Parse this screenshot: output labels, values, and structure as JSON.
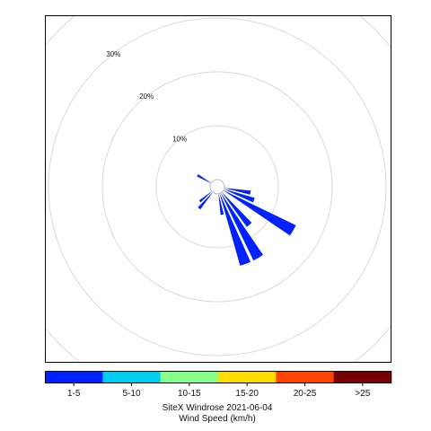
{
  "chart_data": {
    "type": "windrose",
    "title": "SiteX Windrose 2021-06-04",
    "legend_title": "Wind Speed (km/h)",
    "radial_unit": "%",
    "radial_max": 30,
    "radial_ticks": [
      {
        "value": 10,
        "label": "10%"
      },
      {
        "value": 20,
        "label": "20%"
      },
      {
        "value": 30,
        "label": "30%"
      }
    ],
    "ring_values": [
      10,
      20,
      30,
      40
    ],
    "speed_bins": [
      {
        "label": "1-5",
        "color": "#0022ff"
      },
      {
        "label": "5-10",
        "color": "#00ccee"
      },
      {
        "label": "10-15",
        "color": "#88ff88"
      },
      {
        "label": "15-20",
        "color": "#ffdd00"
      },
      {
        "label": "20-25",
        "color": "#ff4400"
      },
      {
        "label": ">25",
        "color": "#770000"
      }
    ],
    "sectors": [
      {
        "direction_deg": 300,
        "frequency": 3
      },
      {
        "direction_deg": 100,
        "frequency": 5
      },
      {
        "direction_deg": 110,
        "frequency": 6
      },
      {
        "direction_deg": 120,
        "frequency": 15
      },
      {
        "direction_deg": 140,
        "frequency": 8
      },
      {
        "direction_deg": 150,
        "frequency": 14
      },
      {
        "direction_deg": 160,
        "frequency": 14
      },
      {
        "direction_deg": 170,
        "frequency": 4
      },
      {
        "direction_deg": 220,
        "frequency": 4
      },
      {
        "direction_deg": 230,
        "frequency": 3
      }
    ],
    "grid": true
  }
}
